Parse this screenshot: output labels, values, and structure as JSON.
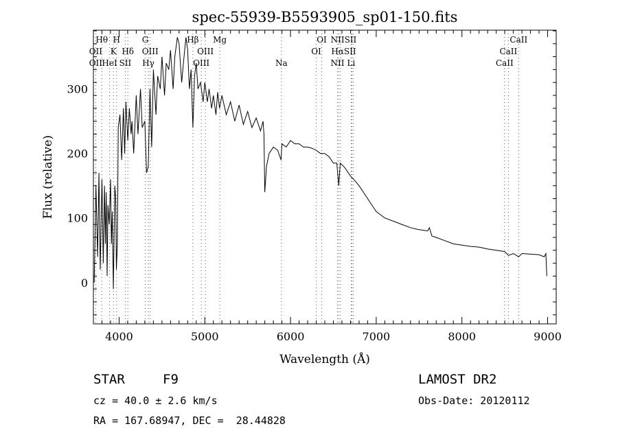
{
  "chart_data": {
    "type": "line",
    "title": "spec-55939-B5593905_sp01-150.fits",
    "xlabel": "Wavelength (Å)",
    "ylabel": "Flux (relative)",
    "xlim": [
      3700,
      9100
    ],
    "ylim": [
      -64,
      391
    ],
    "xticks": [
      4000,
      5000,
      6000,
      7000,
      8000,
      9000
    ],
    "yticks": [
      0,
      100,
      200,
      300
    ],
    "grid": false,
    "series": [
      {
        "name": "spectrum",
        "x": [
          3710,
          3730,
          3750,
          3765,
          3780,
          3795,
          3800,
          3815,
          3830,
          3840,
          3850,
          3860,
          3870,
          3885,
          3900,
          3910,
          3920,
          3933,
          3950,
          3960,
          3968,
          3980,
          3990,
          4010,
          4030,
          4050,
          4065,
          4080,
          4101,
          4120,
          4140,
          4150,
          4170,
          4200,
          4220,
          4250,
          4270,
          4300,
          4320,
          4340,
          4360,
          4380,
          4400,
          4430,
          4450,
          4480,
          4500,
          4530,
          4550,
          4580,
          4600,
          4630,
          4650,
          4680,
          4700,
          4730,
          4750,
          4780,
          4800,
          4820,
          4840,
          4861,
          4880,
          4900,
          4920,
          4950,
          4980,
          5000,
          5030,
          5050,
          5080,
          5100,
          5130,
          5150,
          5172,
          5200,
          5250,
          5300,
          5350,
          5400,
          5450,
          5500,
          5550,
          5600,
          5650,
          5680,
          5690,
          5700,
          5720,
          5750,
          5800,
          5850,
          5890,
          5900,
          5950,
          6000,
          6050,
          6100,
          6150,
          6200,
          6250,
          6300,
          6350,
          6400,
          6450,
          6500,
          6540,
          6563,
          6580,
          6620,
          6650,
          6700,
          6750,
          6800,
          6850,
          6900,
          6950,
          7000,
          7050,
          7100,
          7200,
          7300,
          7400,
          7500,
          7600,
          7620,
          7650,
          7700,
          7800,
          7900,
          8000,
          8100,
          8200,
          8300,
          8400,
          8500,
          8542,
          8600,
          8662,
          8700,
          8800,
          8900,
          8960,
          8980,
          8990
        ],
        "y": [
          0,
          150,
          40,
          170,
          20,
          130,
          160,
          30,
          150,
          60,
          140,
          10,
          120,
          90,
          160,
          60,
          110,
          -10,
          150,
          130,
          20,
          60,
          240,
          260,
          190,
          270,
          200,
          280,
          220,
          270,
          230,
          250,
          200,
          290,
          230,
          300,
          240,
          250,
          170,
          180,
          300,
          210,
          330,
          260,
          320,
          300,
          350,
          290,
          340,
          330,
          360,
          300,
          350,
          380,
          370,
          310,
          340,
          380,
          360,
          300,
          330,
          240,
          320,
          340,
          300,
          310,
          280,
          310,
          280,
          300,
          270,
          290,
          260,
          295,
          270,
          290,
          260,
          280,
          250,
          275,
          245,
          265,
          240,
          255,
          235,
          250,
          230,
          140,
          180,
          200,
          210,
          205,
          190,
          215,
          210,
          220,
          215,
          215,
          210,
          210,
          208,
          205,
          200,
          200,
          195,
          185,
          185,
          150,
          185,
          180,
          175,
          165,
          158,
          150,
          140,
          130,
          120,
          110,
          105,
          100,
          95,
          90,
          85,
          82,
          80,
          85,
          72,
          70,
          65,
          60,
          58,
          56,
          55,
          52,
          50,
          48,
          42,
          45,
          40,
          45,
          44,
          43,
          40,
          45,
          10
        ]
      }
    ],
    "line_markers": [
      {
        "label": "Hθ",
        "wave": 3798,
        "row": 0
      },
      {
        "label": "H",
        "wave": 3970,
        "row": 0
      },
      {
        "label": "G",
        "wave": 4305,
        "row": 0
      },
      {
        "label": "Hβ",
        "wave": 4861,
        "row": 0
      },
      {
        "label": "Mg",
        "wave": 5175,
        "row": 0
      },
      {
        "label": "OI",
        "wave": 6364,
        "row": 0
      },
      {
        "label": "NIISII",
        "wave": 6620,
        "row": 0
      },
      {
        "label": "CaII",
        "wave": 8662,
        "row": 0
      },
      {
        "label": "OII",
        "wave": 3727,
        "row": 1
      },
      {
        "label": "K",
        "wave": 3934,
        "row": 1
      },
      {
        "label": "Hδ",
        "wave": 4102,
        "row": 1
      },
      {
        "label": "OIII",
        "wave": 4363,
        "row": 1
      },
      {
        "label": "OIII",
        "wave": 5007,
        "row": 1
      },
      {
        "label": "OI",
        "wave": 6300,
        "row": 1
      },
      {
        "label": "HαSII",
        "wave": 6620,
        "row": 1
      },
      {
        "label": "CaII",
        "wave": 8542,
        "row": 1
      },
      {
        "label": "OII",
        "wave": 3727,
        "row": 2
      },
      {
        "label": "HeI",
        "wave": 3889,
        "row": 2
      },
      {
        "label": "SII",
        "wave": 4072,
        "row": 2
      },
      {
        "label": "Hγ",
        "wave": 4341,
        "row": 2
      },
      {
        "label": "OIII",
        "wave": 4959,
        "row": 2
      },
      {
        "label": "Na",
        "wave": 5894,
        "row": 2
      },
      {
        "label": "NII",
        "wave": 6548,
        "row": 2
      },
      {
        "label": "Li",
        "wave": 6708,
        "row": 2
      },
      {
        "label": "CaII",
        "wave": 8498,
        "row": 2
      }
    ],
    "line_waves": [
      3727,
      3798,
      3889,
      3934,
      3970,
      4072,
      4102,
      4305,
      4341,
      4363,
      4861,
      4959,
      5007,
      5175,
      5894,
      6300,
      6364,
      6548,
      6563,
      6583,
      6708,
      6716,
      6731,
      8498,
      8542,
      8662
    ]
  },
  "info": {
    "class": "STAR",
    "subclass": "F9",
    "survey": "LAMOST DR2",
    "cz": "cz = 40.0 ± 2.6 km/s",
    "obs_date": "Obs-Date: 20120112",
    "coords": "RA = 167.68947, DEC =  28.44828"
  }
}
